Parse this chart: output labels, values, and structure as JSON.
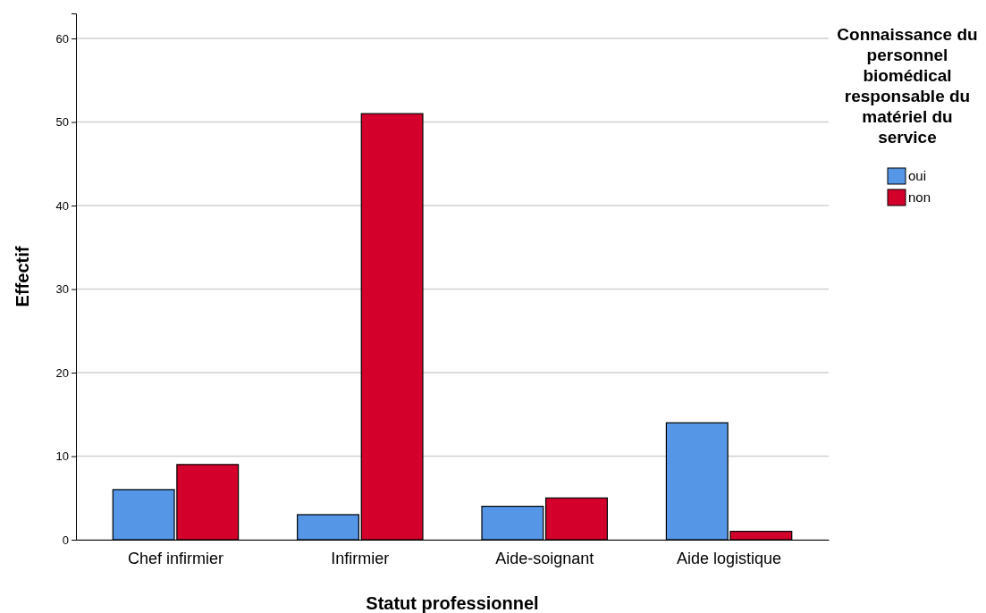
{
  "chart_data": {
    "type": "bar",
    "xlabel": "Statut professionnel",
    "ylabel": "Effectif",
    "legend_title": "Connaissance du personnel biomédical responsable du matériel du service",
    "categories": [
      "Chef infirmier",
      "Infirmier",
      "Aide-soignant",
      "Aide logistique"
    ],
    "series": [
      {
        "name": "oui",
        "color": "#5596e6",
        "values": [
          6,
          3,
          4,
          14
        ]
      },
      {
        "name": "non",
        "color": "#d2002a",
        "values": [
          9,
          51,
          5,
          1
        ]
      }
    ],
    "ylim": [
      0,
      63
    ],
    "yticks": [
      0,
      10,
      20,
      30,
      40,
      50,
      60
    ],
    "grid": "y",
    "legend": "top right"
  }
}
